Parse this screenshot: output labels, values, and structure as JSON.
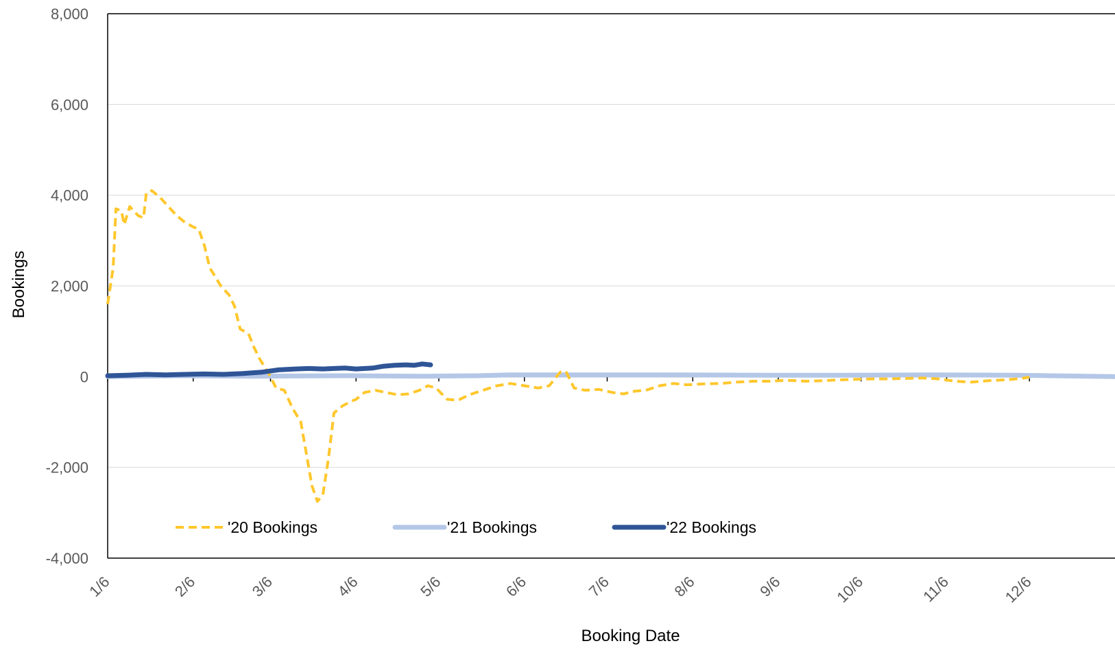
{
  "chart_data": {
    "type": "line",
    "xlabel": "Booking Date",
    "ylabel": "Bookings",
    "ylim": [
      -4000,
      8000
    ],
    "yticks": [
      -4000,
      -2000,
      0,
      2000,
      4000,
      6000,
      8000
    ],
    "ytick_labels": [
      "-4,000",
      "-2,000",
      "0",
      "2,000",
      "4,000",
      "6,000",
      "8,000"
    ],
    "xlim": [
      "1/6",
      "1/6"
    ],
    "xticks": [
      "1/6",
      "2/6",
      "3/6",
      "4/6",
      "5/6",
      "6/6",
      "7/6",
      "8/6",
      "9/6",
      "10/6",
      "11/6",
      "12/6"
    ],
    "grid": "horizontal",
    "legend_position": "bottom-left inside plot",
    "colors": {
      "grid": "#d9d9d9",
      "axis": "#000000",
      "series_20": "#ffc72c",
      "series_21": "#b4c7e7",
      "series_22": "#2f5597"
    },
    "series": [
      {
        "name": "'20 Bookings",
        "style": "dashed",
        "points": [
          [
            "1/6",
            1600
          ],
          [
            "1/8",
            2400
          ],
          [
            "1/9",
            3700
          ],
          [
            "1/11",
            3650
          ],
          [
            "1/12",
            3350
          ],
          [
            "1/14",
            3750
          ],
          [
            "1/17",
            3550
          ],
          [
            "1/19",
            3500
          ],
          [
            "1/20",
            4050
          ],
          [
            "1/22",
            4100
          ],
          [
            "1/25",
            3950
          ],
          [
            "1/28",
            3750
          ],
          [
            "1/31",
            3550
          ],
          [
            "2/3",
            3400
          ],
          [
            "2/6",
            3300
          ],
          [
            "2/8",
            3250
          ],
          [
            "2/10",
            2900
          ],
          [
            "2/12",
            2400
          ],
          [
            "2/14",
            2200
          ],
          [
            "2/16",
            2000
          ],
          [
            "2/19",
            1800
          ],
          [
            "2/21",
            1550
          ],
          [
            "2/23",
            1050
          ],
          [
            "2/26",
            950
          ],
          [
            "2/28",
            650
          ],
          [
            "3/2",
            400
          ],
          [
            "3/4",
            200
          ],
          [
            "3/6",
            0
          ],
          [
            "3/8",
            -250
          ],
          [
            "3/11",
            -300
          ],
          [
            "3/14",
            -700
          ],
          [
            "3/17",
            -1000
          ],
          [
            "3/19",
            -1700
          ],
          [
            "3/21",
            -2400
          ],
          [
            "3/23",
            -2750
          ],
          [
            "3/25",
            -2600
          ],
          [
            "3/27",
            -1800
          ],
          [
            "3/29",
            -800
          ],
          [
            "4/1",
            -650
          ],
          [
            "4/4",
            -550
          ],
          [
            "4/6",
            -500
          ],
          [
            "4/9",
            -350
          ],
          [
            "4/13",
            -300
          ],
          [
            "4/17",
            -350
          ],
          [
            "4/21",
            -400
          ],
          [
            "4/25",
            -380
          ],
          [
            "4/29",
            -300
          ],
          [
            "5/2",
            -200
          ],
          [
            "5/5",
            -250
          ],
          [
            "5/9",
            -500
          ],
          [
            "5/13",
            -520
          ],
          [
            "5/17",
            -400
          ],
          [
            "5/22",
            -300
          ],
          [
            "5/27",
            -200
          ],
          [
            "6/1",
            -150
          ],
          [
            "6/6",
            -200
          ],
          [
            "6/11",
            -250
          ],
          [
            "6/15",
            -200
          ],
          [
            "6/19",
            100
          ],
          [
            "6/21",
            120
          ],
          [
            "6/24",
            -250
          ],
          [
            "6/28",
            -300
          ],
          [
            "7/3",
            -280
          ],
          [
            "7/8",
            -350
          ],
          [
            "7/12",
            -380
          ],
          [
            "7/16",
            -320
          ],
          [
            "7/20",
            -300
          ],
          [
            "7/25",
            -200
          ],
          [
            "7/30",
            -150
          ],
          [
            "8/4",
            -180
          ],
          [
            "8/10",
            -160
          ],
          [
            "8/16",
            -150
          ],
          [
            "8/22",
            -120
          ],
          [
            "8/28",
            -100
          ],
          [
            "9/3",
            -100
          ],
          [
            "9/9",
            -80
          ],
          [
            "9/16",
            -100
          ],
          [
            "9/22",
            -90
          ],
          [
            "9/28",
            -70
          ],
          [
            "10/4",
            -60
          ],
          [
            "10/10",
            -50
          ],
          [
            "10/16",
            -50
          ],
          [
            "10/22",
            -40
          ],
          [
            "10/28",
            -30
          ],
          [
            "11/3",
            -50
          ],
          [
            "11/9",
            -100
          ],
          [
            "11/15",
            -120
          ],
          [
            "11/21",
            -90
          ],
          [
            "11/27",
            -70
          ],
          [
            "12/3",
            -40
          ],
          [
            "12/6",
            -10
          ]
        ]
      },
      {
        "name": "'21 Bookings",
        "style": "solid",
        "points": [
          [
            "1/6",
            0
          ],
          [
            "2/1",
            20
          ],
          [
            "3/1",
            10
          ],
          [
            "4/1",
            20
          ],
          [
            "5/1",
            10
          ],
          [
            "5/20",
            20
          ],
          [
            "6/1",
            40
          ],
          [
            "7/1",
            40
          ],
          [
            "8/1",
            40
          ],
          [
            "9/1",
            30
          ],
          [
            "10/1",
            30
          ],
          [
            "11/1",
            40
          ],
          [
            "12/1",
            30
          ],
          [
            "1/6",
            0
          ]
        ]
      },
      {
        "name": "'22 Bookings",
        "style": "solid",
        "points": [
          [
            "1/6",
            20
          ],
          [
            "1/13",
            30
          ],
          [
            "1/20",
            50
          ],
          [
            "1/27",
            40
          ],
          [
            "2/3",
            50
          ],
          [
            "2/10",
            60
          ],
          [
            "2/17",
            50
          ],
          [
            "2/24",
            70
          ],
          [
            "3/3",
            100
          ],
          [
            "3/9",
            150
          ],
          [
            "3/15",
            170
          ],
          [
            "3/20",
            180
          ],
          [
            "3/25",
            170
          ],
          [
            "3/29",
            180
          ],
          [
            "4/2",
            190
          ],
          [
            "4/6",
            170
          ],
          [
            "4/12",
            190
          ],
          [
            "4/16",
            230
          ],
          [
            "4/20",
            250
          ],
          [
            "4/24",
            260
          ],
          [
            "4/27",
            250
          ],
          [
            "4/30",
            280
          ],
          [
            "5/3",
            260
          ]
        ]
      }
    ]
  }
}
